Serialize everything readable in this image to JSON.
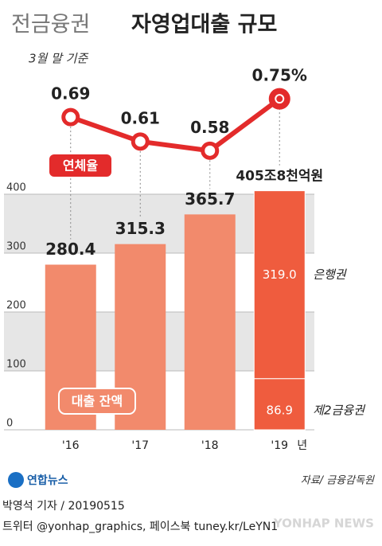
{
  "chart_data": {
    "type": "bar",
    "title_parts": [
      "전금융권",
      "자영업대출 규모"
    ],
    "subtitle": "3월 말 기준",
    "categories": [
      "'16",
      "'17",
      "'18",
      "'19"
    ],
    "x_unit": "년",
    "ylim": [
      0,
      400
    ],
    "yticks": [
      0,
      100,
      200,
      300,
      400
    ],
    "grid": true,
    "series": [
      {
        "name": "대출 잔액",
        "color": "#f28a6c",
        "values": [
          280.4,
          315.3,
          365.7,
          405.8
        ],
        "value_labels": [
          "280.4",
          "315.3",
          "365.7",
          "405조8천억원"
        ]
      }
    ],
    "breakdown": {
      "category_index": 3,
      "color": "#ef5c3e",
      "segments": [
        {
          "name": "제2금융권",
          "value": 86.9
        },
        {
          "name": "은행권",
          "value": 319.0,
          "value_label": "319.0"
        }
      ]
    },
    "line": {
      "name": "연체율",
      "color": "#e32b2b",
      "values": [
        0.69,
        0.61,
        0.58,
        0.75
      ],
      "value_labels": [
        "0.69",
        "0.61",
        "0.58",
        "0.75%"
      ]
    },
    "y2lim": [
      0.5,
      0.8
    ]
  },
  "footer": {
    "logo": "연합뉴스",
    "source": "자료/ 금융감독원",
    "byline": "박영석 기자 / 20190515",
    "social": "트위터 @yonhap_graphics, 페이스북 tuney.kr/LeYN1",
    "watermark": "YONHAP NEWS"
  }
}
